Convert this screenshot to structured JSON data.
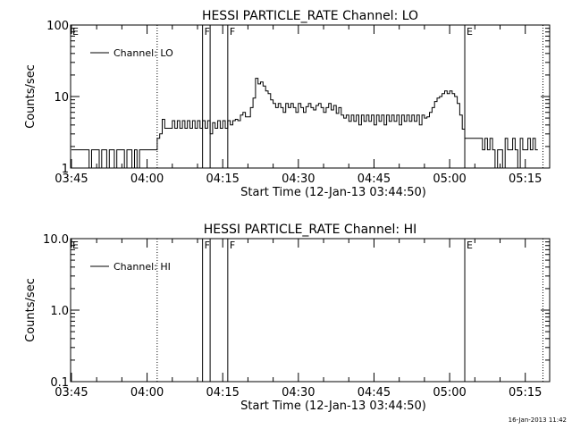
{
  "footer": {
    "timestamp": "16-Jan-2013 11:42"
  },
  "chart_data": [
    {
      "type": "line",
      "title": "HESSI PARTICLE_RATE Channel: LO",
      "xlabel": "Start Time (12-Jan-13 03:44:50)",
      "ylabel": "Counts/sec",
      "y_scale": "log",
      "ylim": [
        1,
        100
      ],
      "y_ticks": [
        {
          "value": 1,
          "label": "1"
        },
        {
          "value": 10,
          "label": "10"
        },
        {
          "value": 100,
          "label": "100"
        }
      ],
      "x_ticks": [
        "03:45",
        "04:00",
        "04:15",
        "04:30",
        "04:45",
        "05:00",
        "05:15"
      ],
      "legend": {
        "label": "Channel: LO",
        "placement": "top-left"
      },
      "grid": false,
      "markers": [
        {
          "time": "04:02",
          "label": "",
          "style": "dotted"
        },
        {
          "time": "04:11",
          "label": "F",
          "style": "solid"
        },
        {
          "time": "04:12.5",
          "label": "",
          "style": "solid"
        },
        {
          "time": "04:16",
          "label": "F",
          "style": "solid"
        },
        {
          "time": "05:03",
          "label": "E",
          "style": "solid"
        },
        {
          "time": "05:18.5",
          "label": "",
          "style": "dotted"
        }
      ],
      "edge_labels": [
        {
          "time": "03:45",
          "label": "E"
        }
      ],
      "series": [
        {
          "points": [
            [
              "03:45",
              1.8
            ],
            [
              "03:48",
              1.8
            ],
            [
              "03:48.5",
              1
            ],
            [
              "03:49",
              1.8
            ],
            [
              "03:50",
              1.8
            ],
            [
              "03:50.5",
              1
            ],
            [
              "03:51",
              1.8
            ],
            [
              "03:52",
              1
            ],
            [
              "03:52.5",
              1.8
            ],
            [
              "03:53",
              1.8
            ],
            [
              "03:53.5",
              1
            ],
            [
              "03:54",
              1.8
            ],
            [
              "03:55",
              1.8
            ],
            [
              "03:55.5",
              1
            ],
            [
              "03:56",
              1.8
            ],
            [
              "03:57",
              1
            ],
            [
              "03:57.5",
              1.8
            ],
            [
              "03:58",
              1
            ],
            [
              "03:58.5",
              1.8
            ],
            [
              "04:01.5",
              1.8
            ],
            [
              "04:02",
              2.6
            ],
            [
              "04:02.5",
              3
            ],
            [
              "04:03",
              4.8
            ],
            [
              "04:03.5",
              3.6
            ],
            [
              "04:04",
              3.6
            ],
            [
              "04:05",
              4.6
            ],
            [
              "04:05.5",
              3.6
            ],
            [
              "04:06",
              4.6
            ],
            [
              "04:06.5",
              3.6
            ],
            [
              "04:07",
              4.6
            ],
            [
              "04:07.5",
              3.6
            ],
            [
              "04:08",
              4.6
            ],
            [
              "04:08.5",
              3.6
            ],
            [
              "04:09",
              4.6
            ],
            [
              "04:09.5",
              3.6
            ],
            [
              "04:10",
              4.6
            ],
            [
              "04:10.5",
              3.6
            ],
            [
              "04:11",
              4.6
            ],
            [
              "04:11.5",
              3.6
            ],
            [
              "04:12",
              4.6
            ],
            [
              "04:12.5",
              3
            ],
            [
              "04:13",
              4.3
            ],
            [
              "04:13.5",
              3.6
            ],
            [
              "04:14",
              4.6
            ],
            [
              "04:14.5",
              3.6
            ],
            [
              "04:15",
              4.6
            ],
            [
              "04:15.5",
              3.6
            ],
            [
              "04:16",
              4.6
            ],
            [
              "04:16.5",
              4
            ],
            [
              "04:17",
              4.6
            ],
            [
              "04:17.5",
              4.8
            ],
            [
              "04:18",
              4.6
            ],
            [
              "04:18.5",
              5.5
            ],
            [
              "04:19",
              6
            ],
            [
              "04:19.5",
              5.2
            ],
            [
              "04:20",
              5.2
            ],
            [
              "04:20.5",
              7
            ],
            [
              "04:21",
              9.5
            ],
            [
              "04:21.5",
              18
            ],
            [
              "04:22",
              15
            ],
            [
              "04:22.5",
              16
            ],
            [
              "04:23",
              14
            ],
            [
              "04:23.5",
              12
            ],
            [
              "04:24",
              11
            ],
            [
              "04:24.5",
              9
            ],
            [
              "04:25",
              8
            ],
            [
              "04:25.5",
              7
            ],
            [
              "04:26",
              8
            ],
            [
              "04:26.5",
              7
            ],
            [
              "04:27",
              6
            ],
            [
              "04:27.5",
              8
            ],
            [
              "04:28",
              7
            ],
            [
              "04:28.5",
              8
            ],
            [
              "04:29",
              7
            ],
            [
              "04:29.5",
              6
            ],
            [
              "04:30",
              8
            ],
            [
              "04:30.5",
              7
            ],
            [
              "04:31",
              6
            ],
            [
              "04:31.5",
              7.2
            ],
            [
              "04:32",
              8
            ],
            [
              "04:32.5",
              7
            ],
            [
              "04:33",
              6.5
            ],
            [
              "04:33.5",
              7.5
            ],
            [
              "04:34",
              8
            ],
            [
              "04:34.5",
              7
            ],
            [
              "04:35",
              6
            ],
            [
              "04:35.5",
              7
            ],
            [
              "04:36",
              8
            ],
            [
              "04:36.5",
              6.5
            ],
            [
              "04:37",
              7.5
            ],
            [
              "04:37.5",
              5.8
            ],
            [
              "04:38",
              7
            ],
            [
              "04:38.5",
              5.5
            ],
            [
              "04:39",
              5
            ],
            [
              "04:39.5",
              5.5
            ],
            [
              "04:40",
              4.5
            ],
            [
              "04:40.5",
              5.5
            ],
            [
              "04:41",
              4.5
            ],
            [
              "04:41.5",
              5.5
            ],
            [
              "04:42",
              4
            ],
            [
              "04:42.5",
              5.5
            ],
            [
              "04:43",
              4.5
            ],
            [
              "04:43.5",
              5.5
            ],
            [
              "04:44",
              4.5
            ],
            [
              "04:44.5",
              5.5
            ],
            [
              "04:45",
              4
            ],
            [
              "04:45.5",
              5.5
            ],
            [
              "04:46",
              4.5
            ],
            [
              "04:46.5",
              5.5
            ],
            [
              "04:47",
              4
            ],
            [
              "04:47.5",
              5.5
            ],
            [
              "04:48",
              4.5
            ],
            [
              "04:48.5",
              5.5
            ],
            [
              "04:49",
              4.5
            ],
            [
              "04:49.5",
              5.5
            ],
            [
              "04:50",
              4
            ],
            [
              "04:50.5",
              5.5
            ],
            [
              "04:51",
              4.5
            ],
            [
              "04:51.5",
              5.5
            ],
            [
              "04:52",
              4.5
            ],
            [
              "04:52.5",
              5.5
            ],
            [
              "04:53",
              4.5
            ],
            [
              "04:53.5",
              5.5
            ],
            [
              "04:54",
              4
            ],
            [
              "04:54.5",
              5.5
            ],
            [
              "04:55",
              5
            ],
            [
              "04:55.5",
              5.2
            ],
            [
              "04:56",
              6
            ],
            [
              "04:56.5",
              7
            ],
            [
              "04:57",
              8.5
            ],
            [
              "04:57.5",
              9.5
            ],
            [
              "04:58",
              10
            ],
            [
              "04:58.5",
              11
            ],
            [
              "04:59",
              12
            ],
            [
              "04:59.5",
              11
            ],
            [
              "05:00",
              12
            ],
            [
              "05:00.5",
              11
            ],
            [
              "05:01",
              10
            ],
            [
              "05:01.5",
              8
            ],
            [
              "05:02",
              5.5
            ],
            [
              "05:02.5",
              3.5
            ],
            [
              "05:03",
              2.6
            ],
            [
              "05:04",
              2.6
            ],
            [
              "05:05",
              2.6
            ],
            [
              "05:06",
              2.6
            ],
            [
              "05:06.5",
              1.8
            ],
            [
              "05:07",
              2.6
            ],
            [
              "05:07.5",
              1.8
            ],
            [
              "05:08",
              2.6
            ],
            [
              "05:08.5",
              1.8
            ],
            [
              "05:09",
              1
            ],
            [
              "05:09.5",
              1.8
            ],
            [
              "05:10",
              1.8
            ],
            [
              "05:10.5",
              1
            ],
            [
              "05:11",
              2.6
            ],
            [
              "05:11.5",
              1.8
            ],
            [
              "05:12",
              1.8
            ],
            [
              "05:12.5",
              2.6
            ],
            [
              "05:13",
              1.8
            ],
            [
              "05:13.5",
              1
            ],
            [
              "05:14",
              2.6
            ],
            [
              "05:14.5",
              1.8
            ],
            [
              "05:15",
              1.8
            ],
            [
              "05:15.5",
              2.6
            ],
            [
              "05:16",
              1.8
            ],
            [
              "05:16.5",
              2.6
            ],
            [
              "05:17",
              1.8
            ],
            [
              "05:17.5",
              1.8
            ]
          ]
        }
      ]
    },
    {
      "type": "line",
      "title": "HESSI PARTICLE_RATE Channel: HI",
      "xlabel": "Start Time (12-Jan-13 03:44:50)",
      "ylabel": "Counts/sec",
      "y_scale": "log",
      "ylim": [
        0.1,
        10
      ],
      "y_ticks": [
        {
          "value": 0.1,
          "label": "0.1"
        },
        {
          "value": 1,
          "label": "1.0"
        },
        {
          "value": 10,
          "label": "10.0"
        }
      ],
      "x_ticks": [
        "03:45",
        "04:00",
        "04:15",
        "04:30",
        "04:45",
        "05:00",
        "05:15"
      ],
      "legend": {
        "label": "Channel: HI",
        "placement": "top-left"
      },
      "grid": false,
      "markers": [
        {
          "time": "04:02",
          "label": "",
          "style": "dotted"
        },
        {
          "time": "04:11",
          "label": "F",
          "style": "solid"
        },
        {
          "time": "04:12.5",
          "label": "",
          "style": "solid"
        },
        {
          "time": "04:16",
          "label": "F",
          "style": "solid"
        },
        {
          "time": "05:03",
          "label": "E",
          "style": "solid"
        },
        {
          "time": "05:18.5",
          "label": "",
          "style": "dotted"
        }
      ],
      "edge_labels": [
        {
          "time": "03:45",
          "label": "E"
        }
      ],
      "series": [
        {
          "points": []
        }
      ]
    }
  ]
}
